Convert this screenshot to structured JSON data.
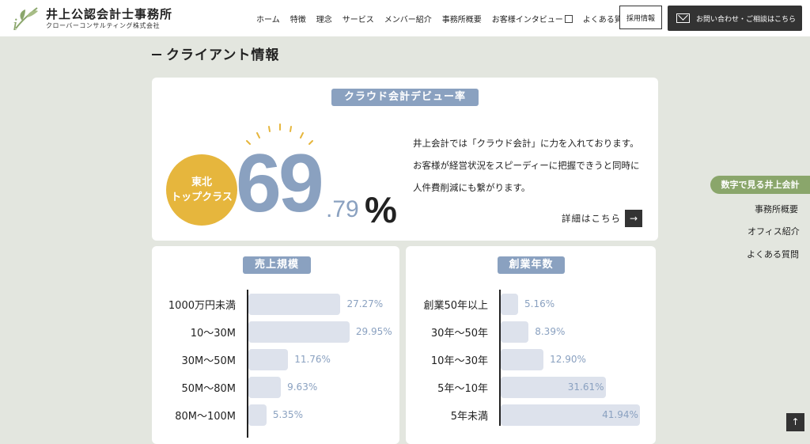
{
  "header": {
    "logo_title": "井上公認会計士事務所",
    "logo_sub": "クローバーコンサルティング株式会社",
    "nav": [
      "ホーム",
      "特徴",
      "理念",
      "サービス",
      "メンバー紹介",
      "事務所概要",
      "お客様インタビュー",
      "よくある質問"
    ],
    "recruit": "採用情報",
    "contact": "お問い合わせ・ご相談はこちら"
  },
  "section_title": "クライアント情報",
  "debut": {
    "pill": "クラウド会計デビュー率",
    "badge_line1": "東北",
    "badge_line2": "トップクラス",
    "big": "69",
    "small": ".79",
    "pct": "%",
    "desc": "井上会計では「クラウド会計」に力を入れております。お客様が経営状況をスピーディーに把握できうと同時に人件費削減にも繋がります。",
    "detail": "詳細はこちら"
  },
  "sales": {
    "pill": "売上規模",
    "rows": [
      {
        "label": "1000万円未満",
        "value": "27.27%",
        "pct": 27.27
      },
      {
        "label": "10〜30M",
        "value": "29.95%",
        "pct": 29.95
      },
      {
        "label": "30M〜50M",
        "value": "11.76%",
        "pct": 11.76
      },
      {
        "label": "50M〜80M",
        "value": "9.63%",
        "pct": 9.63
      },
      {
        "label": "80M〜100M",
        "value": "5.35%",
        "pct": 5.35
      }
    ]
  },
  "years": {
    "pill": "創業年数",
    "rows": [
      {
        "label": "創業50年以上",
        "value": "5.16%",
        "pct": 5.16
      },
      {
        "label": "30年〜50年",
        "value": "8.39%",
        "pct": 8.39
      },
      {
        "label": "10年〜30年",
        "value": "12.90%",
        "pct": 12.9
      },
      {
        "label": "5年〜10年",
        "value": "31.61%",
        "pct": 31.61
      },
      {
        "label": "5年未満",
        "value": "41.94%",
        "pct": 41.94
      }
    ]
  },
  "side_nav": {
    "active": "数字で見る井上会計",
    "items": [
      "事務所概要",
      "オフィス紹介",
      "よくある質問"
    ]
  },
  "colors": {
    "accent": "#8aa1c0",
    "badge": "#e6b63d",
    "side_active": "#8aa66b"
  }
}
